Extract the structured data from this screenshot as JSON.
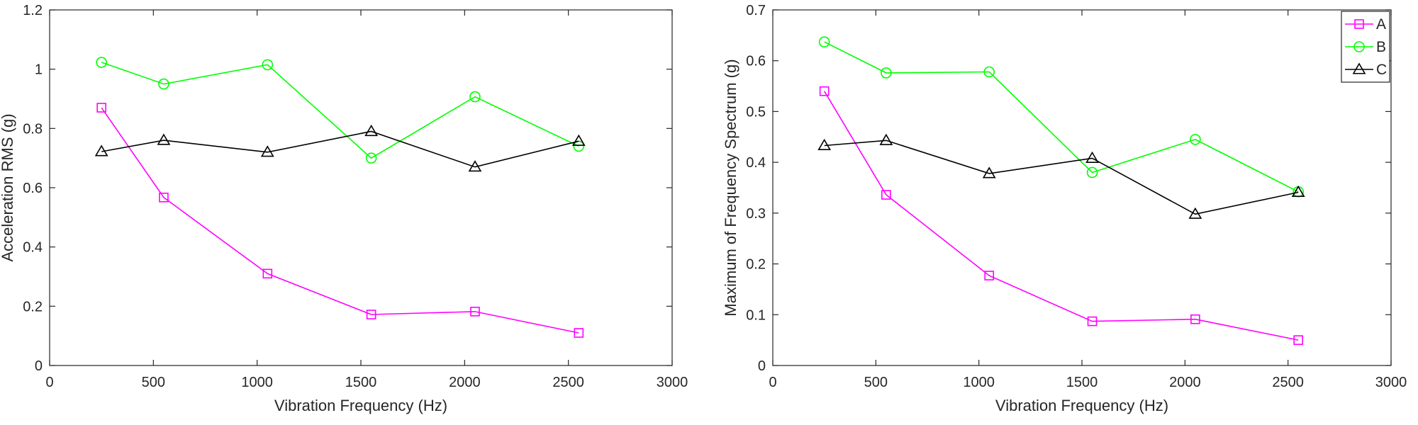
{
  "chart_data": [
    {
      "type": "line",
      "title": "",
      "xlabel": "Vibration Frequency (Hz)",
      "ylabel": "Acceleration RMS (g)",
      "xlim": [
        0,
        3000
      ],
      "ylim": [
        0,
        1.2
      ],
      "xticks": [
        "0",
        "500",
        "1000",
        "1500",
        "2000",
        "2500",
        "3000"
      ],
      "yticks": [
        "0",
        "0.2",
        "0.4",
        "0.6",
        "0.8",
        "1",
        "1.2"
      ],
      "grid": false,
      "legend": null,
      "x": [
        250,
        550,
        1050,
        1550,
        2050,
        2550
      ],
      "series": [
        {
          "name": "A",
          "color": "#ff00ff",
          "marker": "square",
          "values": [
            0.87,
            0.567,
            0.31,
            0.172,
            0.182,
            0.11
          ]
        },
        {
          "name": "B",
          "color": "#00ff00",
          "marker": "circle",
          "values": [
            1.023,
            0.95,
            1.015,
            0.7,
            0.907,
            0.74
          ]
        },
        {
          "name": "C",
          "color": "#000000",
          "marker": "triangle",
          "values": [
            0.722,
            0.76,
            0.72,
            0.79,
            0.67,
            0.757
          ]
        }
      ]
    },
    {
      "type": "line",
      "title": "",
      "xlabel": "Vibration Frequency (Hz)",
      "ylabel": "Maximum of Frequency Spectrum (g)",
      "xlim": [
        0,
        3000
      ],
      "ylim": [
        0,
        0.7
      ],
      "xticks": [
        "0",
        "500",
        "1000",
        "1500",
        "2000",
        "2500",
        "3000"
      ],
      "yticks": [
        "0",
        "0.1",
        "0.2",
        "0.3",
        "0.4",
        "0.5",
        "0.6",
        "0.7"
      ],
      "grid": false,
      "legend": "top-right",
      "x": [
        250,
        550,
        1050,
        1550,
        2050,
        2550
      ],
      "series": [
        {
          "name": "A",
          "color": "#ff00ff",
          "marker": "square",
          "values": [
            0.54,
            0.336,
            0.177,
            0.087,
            0.091,
            0.05
          ]
        },
        {
          "name": "B",
          "color": "#00ff00",
          "marker": "circle",
          "values": [
            0.637,
            0.576,
            0.578,
            0.38,
            0.445,
            0.342
          ]
        },
        {
          "name": "C",
          "color": "#000000",
          "marker": "triangle",
          "values": [
            0.433,
            0.443,
            0.378,
            0.408,
            0.298,
            0.341
          ]
        }
      ]
    }
  ]
}
